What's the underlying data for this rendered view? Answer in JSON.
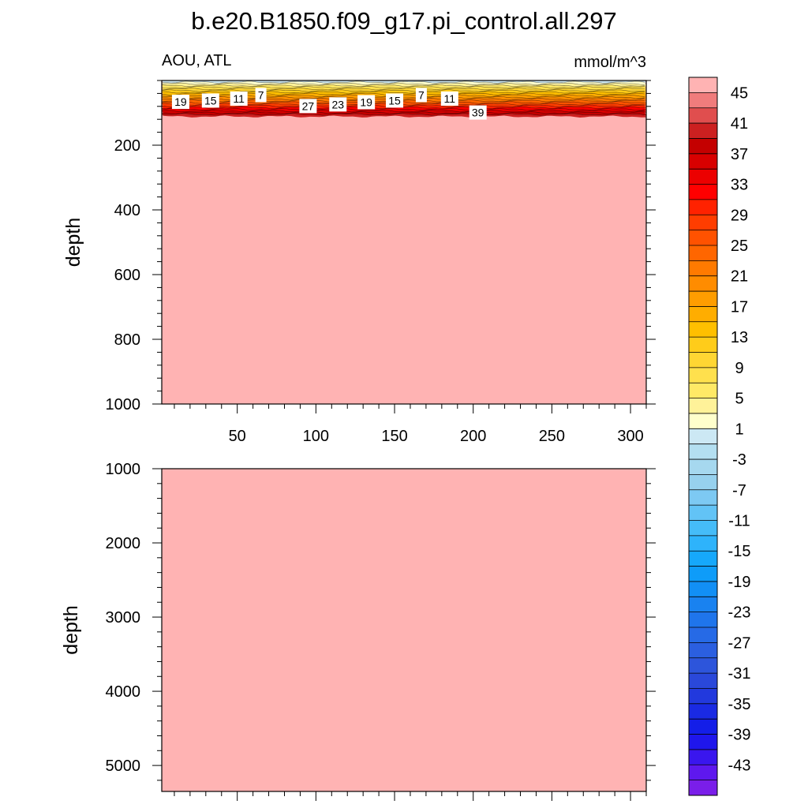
{
  "title": "b.e20.B1850.f09_g17.pi_control.all.297",
  "left_subtitle": "AOU, ATL",
  "right_subtitle": "mmol/m^3",
  "chart_data": [
    {
      "type": "heatmap",
      "panel": "upper",
      "xlim": [
        2,
        310
      ],
      "ylim": [
        0,
        1000
      ],
      "y_inverted": true,
      "ylabel": "depth",
      "xticks": [
        50,
        100,
        150,
        200,
        250,
        300
      ],
      "xtick_labels": [
        "50",
        "100",
        "150",
        "200",
        "250",
        "300"
      ],
      "yticks": [
        200,
        400,
        600,
        800,
        1000
      ],
      "ytick_labels": [
        "200",
        "400",
        "600",
        "800",
        "1000"
      ],
      "contour_labels": [
        {
          "text": "19",
          "x": 14,
          "depth": 66
        },
        {
          "text": "15",
          "x": 33,
          "depth": 62
        },
        {
          "text": "11",
          "x": 51,
          "depth": 56
        },
        {
          "text": "7",
          "x": 65,
          "depth": 45
        },
        {
          "text": "27",
          "x": 95,
          "depth": 79
        },
        {
          "text": "23",
          "x": 114,
          "depth": 74
        },
        {
          "text": "19",
          "x": 132,
          "depth": 67
        },
        {
          "text": "15",
          "x": 150,
          "depth": 62
        },
        {
          "text": "7",
          "x": 167,
          "depth": 45
        },
        {
          "text": "11",
          "x": 185,
          "depth": 56
        },
        {
          "text": "39",
          "x": 203,
          "depth": 99
        }
      ],
      "surface_layer": {
        "depth_range": [
          0,
          110
        ],
        "value_range": [
          1,
          41
        ]
      },
      "field_value_below_layer": 45
    },
    {
      "type": "heatmap",
      "panel": "lower",
      "xlim": [
        2,
        310
      ],
      "ylim": [
        1000,
        5350
      ],
      "y_inverted": true,
      "ylabel": "depth",
      "yticks": [
        1000,
        2000,
        3000,
        4000,
        5000
      ],
      "ytick_labels": [
        "1000",
        "2000",
        "3000",
        "4000",
        "5000"
      ],
      "field_value": 45
    }
  ],
  "colorbar": {
    "levels": [
      45,
      43,
      41,
      39,
      37,
      35,
      33,
      31,
      29,
      27,
      25,
      23,
      21,
      19,
      17,
      15,
      13,
      11,
      9,
      7,
      5,
      3,
      1,
      -1,
      -3,
      -5,
      -7,
      -9,
      -11,
      -13,
      -15,
      -17,
      -19,
      -21,
      -23,
      -25,
      -27,
      -29,
      -31,
      -33,
      -35,
      -37,
      -39,
      -41,
      -43,
      -45
    ],
    "labels": [
      "45",
      "41",
      "37",
      "33",
      "29",
      "25",
      "21",
      "17",
      "13",
      "9",
      "5",
      "1",
      "-3",
      "-7",
      "-11",
      "-15",
      "-19",
      "-23",
      "-27",
      "-31",
      "-35",
      "-39",
      "-43"
    ],
    "colors": [
      "#ffb3b3",
      "#f07c7c",
      "#e04e4e",
      "#cc2020",
      "#c40000",
      "#d80000",
      "#ec0000",
      "#ff0000",
      "#ff2200",
      "#ff3d00",
      "#ff5200",
      "#ff6600",
      "#ff7a00",
      "#ff8c00",
      "#ff9d00",
      "#ffad00",
      "#ffbf00",
      "#ffcc1a",
      "#ffd633",
      "#ffe04d",
      "#ffe966",
      "#fff299",
      "#ffffcc",
      "#cce8f4",
      "#b4dff1",
      "#a6d8ef",
      "#97d1ee",
      "#7dc9f3",
      "#62c3f6",
      "#45bcf8",
      "#2eb3fb",
      "#16a8fb",
      "#0e9cf9",
      "#128ff5",
      "#1982f0",
      "#1f75eb",
      "#266ae6",
      "#2b5fe0",
      "#2d55db",
      "#2a48da",
      "#2239dd",
      "#1a2ae3",
      "#141ee8",
      "#1f16ec",
      "#3a16ee",
      "#5e18ee",
      "#7a1ee9"
    ]
  }
}
